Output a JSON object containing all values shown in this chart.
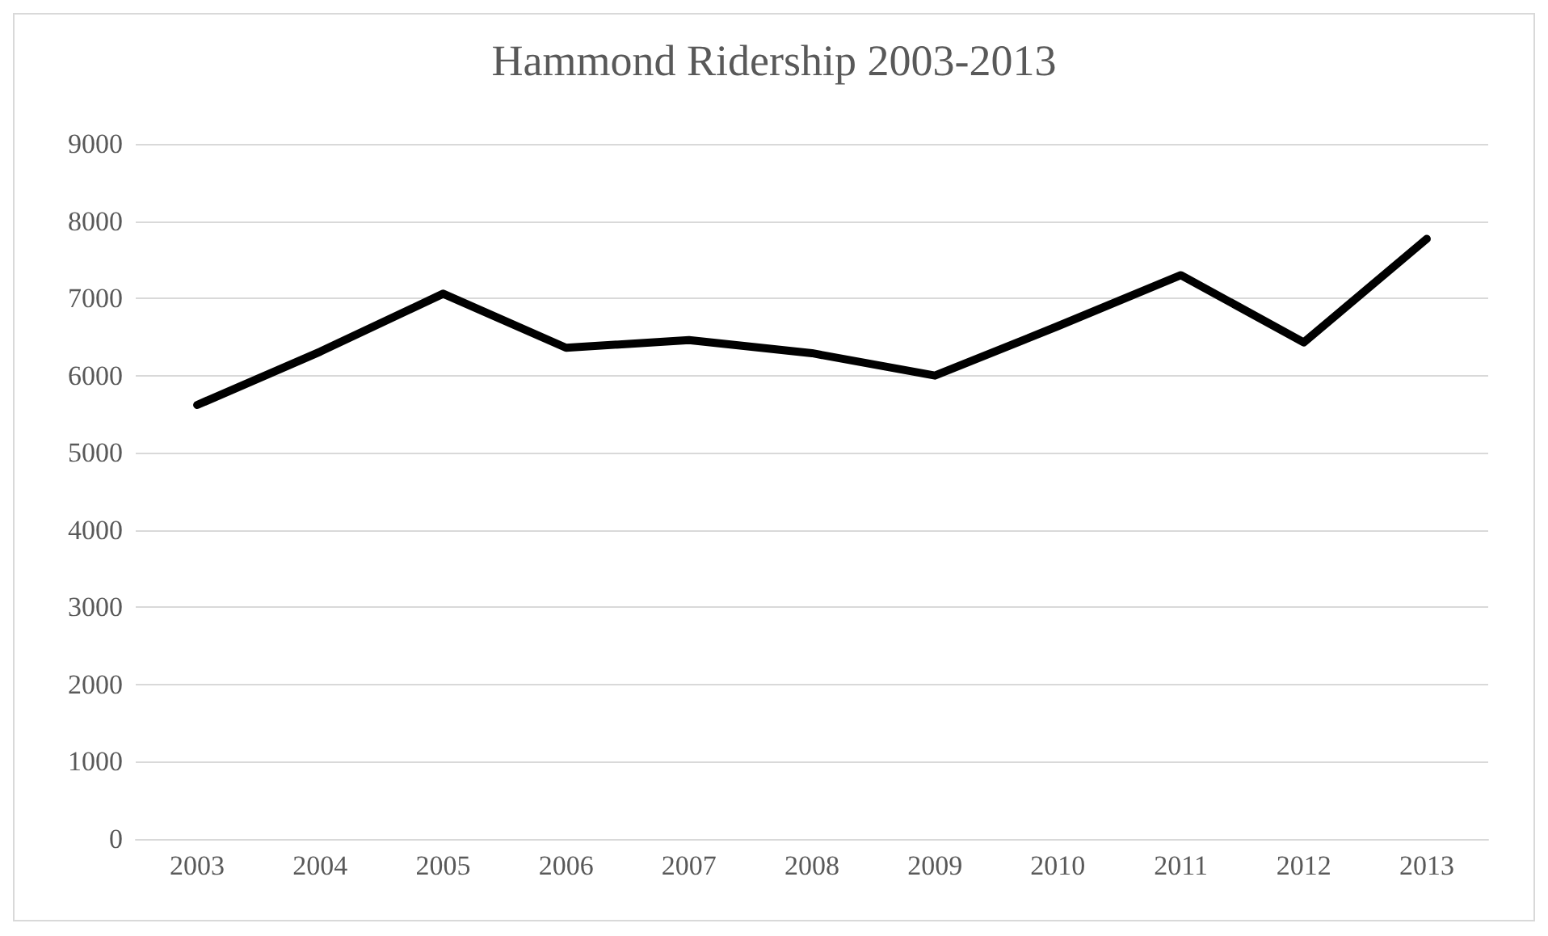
{
  "chart_data": {
    "type": "line",
    "title": "Hammond Ridership 2003-2013",
    "categories": [
      "2003",
      "2004",
      "2005",
      "2006",
      "2007",
      "2008",
      "2009",
      "2010",
      "2011",
      "2012",
      "2013"
    ],
    "series": [
      {
        "color": "#000000",
        "values": [
          5620,
          6310,
          7060,
          6360,
          6460,
          6290,
          6000,
          6640,
          7300,
          6430,
          7770
        ]
      }
    ],
    "ylim": [
      0,
      9000
    ],
    "yticks": [
      0,
      1000,
      2000,
      3000,
      4000,
      5000,
      6000,
      7000,
      8000,
      9000
    ],
    "grid": "y",
    "marker": "none",
    "line_style": "solid"
  }
}
